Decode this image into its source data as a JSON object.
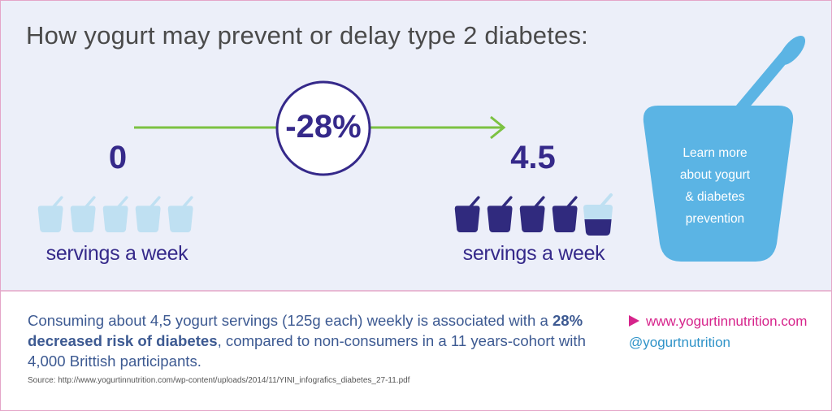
{
  "header": {
    "title": "How yogurt may prevent or delay type 2 diabetes:"
  },
  "before": {
    "number": "0",
    "label": "servings a week"
  },
  "change": "-28%",
  "after": {
    "number": "4.5",
    "label": "servings a week"
  },
  "cta": {
    "lines": [
      "Learn more",
      "about yogurt",
      "& diabetes",
      "prevention"
    ]
  },
  "body": {
    "text_before": "Consuming about 4,5 yogurt servings (125g each) weekly is associated with a ",
    "bold": "28% decreased risk of diabetes",
    "text_after": ", compared to non-consumers in a 11 years-cohort with 4,000 Brittish participants."
  },
  "source": "Source: http://www.yogurtinnutrition.com/wp-content/uploads/2014/11/YINI_infografics_diabetes_27-11.pdf",
  "links": {
    "website": "www.yogurtinnutrition.com",
    "handle": "@yogurtnutrition"
  }
}
